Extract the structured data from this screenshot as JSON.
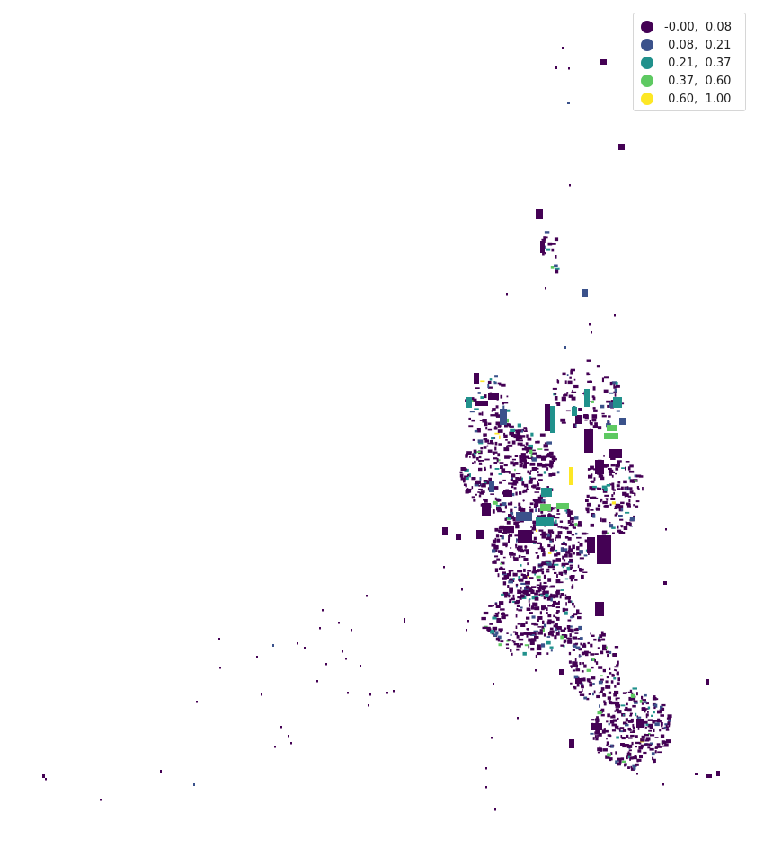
{
  "map": {
    "legend": [
      {
        "label": "-0.00,  0.08",
        "color": "#440154"
      },
      {
        "label": " 0.08,  0.21",
        "color": "#3b528b"
      },
      {
        "label": " 0.21,  0.37",
        "color": "#21918c"
      },
      {
        "label": " 0.37,  0.60",
        "color": "#5ec962"
      },
      {
        "label": " 0.60,  1.00",
        "color": "#fde725"
      }
    ],
    "palette": [
      "#440154",
      "#3b528b",
      "#21918c",
      "#5ec962",
      "#fde725"
    ]
  }
}
